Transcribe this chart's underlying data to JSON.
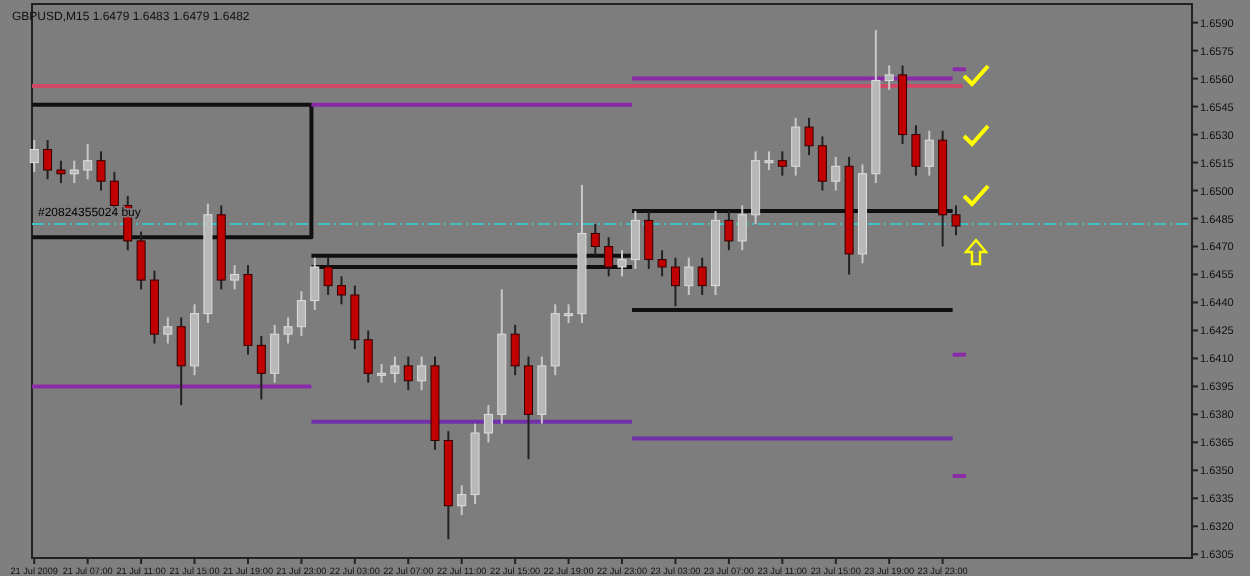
{
  "chart_data": {
    "type": "candlestick",
    "title": "GBPUSD,M15  1.6479 1.6483 1.6479 1.6482",
    "x": [
      "2009-07-21T03:00",
      "2009-07-21T04:00",
      "2009-07-21T05:00",
      "2009-07-21T06:00",
      "2009-07-21T07:00",
      "2009-07-21T08:00",
      "2009-07-21T09:00",
      "2009-07-21T10:00",
      "2009-07-21T11:00",
      "2009-07-21T12:00",
      "2009-07-21T13:00",
      "2009-07-21T14:00",
      "2009-07-21T15:00",
      "2009-07-21T16:00",
      "2009-07-21T17:00",
      "2009-07-21T18:00",
      "2009-07-21T19:00",
      "2009-07-21T20:00",
      "2009-07-21T21:00",
      "2009-07-21T22:00",
      "2009-07-21T23:00",
      "2009-07-22T00:00",
      "2009-07-22T01:00",
      "2009-07-22T02:00",
      "2009-07-22T03:00",
      "2009-07-22T04:00",
      "2009-07-22T05:00",
      "2009-07-22T06:00",
      "2009-07-22T07:00",
      "2009-07-22T08:00",
      "2009-07-22T09:00",
      "2009-07-22T10:00",
      "2009-07-22T11:00",
      "2009-07-22T12:00",
      "2009-07-22T13:00",
      "2009-07-22T14:00",
      "2009-07-22T15:00",
      "2009-07-22T16:00",
      "2009-07-22T17:00",
      "2009-07-22T18:00",
      "2009-07-22T19:00",
      "2009-07-22T20:00",
      "2009-07-22T21:00",
      "2009-07-22T22:00",
      "2009-07-22T23:00",
      "2009-07-23T00:00",
      "2009-07-23T01:00",
      "2009-07-23T02:00",
      "2009-07-23T03:00",
      "2009-07-23T04:00",
      "2009-07-23T05:00",
      "2009-07-23T06:00",
      "2009-07-23T07:00",
      "2009-07-23T08:00",
      "2009-07-23T09:00",
      "2009-07-23T10:00",
      "2009-07-23T11:00",
      "2009-07-23T12:00",
      "2009-07-23T13:00",
      "2009-07-23T14:00",
      "2009-07-23T15:00",
      "2009-07-23T16:00",
      "2009-07-23T17:00",
      "2009-07-23T18:00",
      "2009-07-23T19:00",
      "2009-07-23T20:00",
      "2009-07-23T21:00",
      "2009-07-23T22:00",
      "2009-07-23T23:00",
      "2009-07-24T00:00"
    ],
    "ohlc": [
      [
        1.6515,
        1.6527,
        1.651,
        1.6522
      ],
      [
        1.6522,
        1.6527,
        1.6506,
        1.6511
      ],
      [
        1.6511,
        1.6516,
        1.6504,
        1.6509
      ],
      [
        1.6509,
        1.6516,
        1.6504,
        1.6511
      ],
      [
        1.6511,
        1.6525,
        1.6506,
        1.6516
      ],
      [
        1.6516,
        1.6521,
        1.65,
        1.6505
      ],
      [
        1.6505,
        1.651,
        1.6487,
        1.6492
      ],
      [
        1.6492,
        1.6497,
        1.6468,
        1.6473
      ],
      [
        1.6473,
        1.6478,
        1.6447,
        1.6452
      ],
      [
        1.6452,
        1.6457,
        1.6418,
        1.6423
      ],
      [
        1.6423,
        1.6432,
        1.6418,
        1.6427
      ],
      [
        1.6427,
        1.6432,
        1.6385,
        1.6406
      ],
      [
        1.6406,
        1.6439,
        1.6401,
        1.6434
      ],
      [
        1.6434,
        1.6493,
        1.6429,
        1.6487
      ],
      [
        1.6487,
        1.6492,
        1.6447,
        1.6452
      ],
      [
        1.6452,
        1.646,
        1.6447,
        1.6455
      ],
      [
        1.6455,
        1.646,
        1.6412,
        1.6417
      ],
      [
        1.6417,
        1.6422,
        1.6388,
        1.6402
      ],
      [
        1.6402,
        1.6428,
        1.6397,
        1.6423
      ],
      [
        1.6423,
        1.6432,
        1.6418,
        1.6427
      ],
      [
        1.6427,
        1.6446,
        1.6422,
        1.6441
      ],
      [
        1.6441,
        1.6464,
        1.6436,
        1.6459
      ],
      [
        1.6459,
        1.6464,
        1.6444,
        1.6449
      ],
      [
        1.6449,
        1.6454,
        1.6439,
        1.6444
      ],
      [
        1.6444,
        1.6449,
        1.6415,
        1.642
      ],
      [
        1.642,
        1.6425,
        1.6397,
        1.6402
      ],
      [
        1.6402,
        1.6407,
        1.6397,
        1.6402
      ],
      [
        1.6402,
        1.6411,
        1.6397,
        1.6406
      ],
      [
        1.6406,
        1.6411,
        1.6393,
        1.6398
      ],
      [
        1.6398,
        1.6411,
        1.6393,
        1.6406
      ],
      [
        1.6406,
        1.6411,
        1.6361,
        1.6366
      ],
      [
        1.6366,
        1.6371,
        1.6313,
        1.6331
      ],
      [
        1.6331,
        1.6342,
        1.6326,
        1.6337
      ],
      [
        1.6337,
        1.6375,
        1.6332,
        1.637
      ],
      [
        1.637,
        1.6385,
        1.6365,
        1.638
      ],
      [
        1.638,
        1.6447,
        1.6375,
        1.6423
      ],
      [
        1.6423,
        1.6428,
        1.6401,
        1.6406
      ],
      [
        1.6406,
        1.6411,
        1.6356,
        1.638
      ],
      [
        1.638,
        1.6411,
        1.6375,
        1.6406
      ],
      [
        1.6406,
        1.6439,
        1.6401,
        1.6434
      ],
      [
        1.6434,
        1.6439,
        1.6429,
        1.6434
      ],
      [
        1.6434,
        1.6503,
        1.6429,
        1.6477
      ],
      [
        1.6477,
        1.6482,
        1.6465,
        1.647
      ],
      [
        1.647,
        1.6475,
        1.6454,
        1.6459
      ],
      [
        1.6459,
        1.6468,
        1.6454,
        1.6463
      ],
      [
        1.6463,
        1.6489,
        1.6458,
        1.6484
      ],
      [
        1.6484,
        1.6489,
        1.6458,
        1.6463
      ],
      [
        1.6463,
        1.6468,
        1.6454,
        1.6459
      ],
      [
        1.6459,
        1.6464,
        1.6438,
        1.6449
      ],
      [
        1.6449,
        1.6464,
        1.6444,
        1.6459
      ],
      [
        1.6459,
        1.6464,
        1.6444,
        1.6449
      ],
      [
        1.6449,
        1.6489,
        1.6444,
        1.6484
      ],
      [
        1.6484,
        1.6489,
        1.6468,
        1.6473
      ],
      [
        1.6473,
        1.6492,
        1.6468,
        1.6487
      ],
      [
        1.6487,
        1.6521,
        1.6482,
        1.6516
      ],
      [
        1.6516,
        1.6521,
        1.6511,
        1.6516
      ],
      [
        1.6516,
        1.6521,
        1.6508,
        1.6513
      ],
      [
        1.6513,
        1.6539,
        1.6508,
        1.6534
      ],
      [
        1.6534,
        1.6539,
        1.6519,
        1.6524
      ],
      [
        1.6524,
        1.6529,
        1.65,
        1.6505
      ],
      [
        1.6505,
        1.6518,
        1.65,
        1.6513
      ],
      [
        1.6513,
        1.6518,
        1.6455,
        1.6466
      ],
      [
        1.6466,
        1.6514,
        1.6461,
        1.6509
      ],
      [
        1.6509,
        1.6586,
        1.6504,
        1.6559
      ],
      [
        1.6559,
        1.6567,
        1.6554,
        1.6562
      ],
      [
        1.6562,
        1.6567,
        1.6525,
        1.653
      ],
      [
        1.653,
        1.6535,
        1.6508,
        1.6513
      ],
      [
        1.6513,
        1.6532,
        1.6508,
        1.6527
      ],
      [
        1.6527,
        1.6532,
        1.647,
        1.6487
      ],
      [
        1.6487,
        1.6492,
        1.6476,
        1.6481
      ]
    ],
    "series": [
      {
        "type": "line",
        "color": "#d04868",
        "x": [
          "2009-07-21T02:50",
          "2009-07-24T00:30"
        ],
        "values": [
          1.6556,
          1.6556
        ]
      },
      {
        "type": "line",
        "color": "#101010",
        "x": [
          "2009-07-21T02:50",
          "2009-07-21T23:45",
          "2009-07-21T23:45",
          "2009-07-21T02:50"
        ],
        "values": [
          1.6546,
          1.6546,
          1.6475,
          1.6475
        ]
      },
      {
        "type": "line",
        "color": "#101010",
        "x": [
          "2009-07-21T23:45",
          "2009-07-22T23:45"
        ],
        "values": [
          1.6465,
          1.6465
        ]
      },
      {
        "type": "line",
        "color": "#101010",
        "x": [
          "2009-07-21T23:45",
          "2009-07-22T23:45"
        ],
        "values": [
          1.6459,
          1.6459
        ]
      },
      {
        "type": "line",
        "color": "#101010",
        "x": [
          "2009-07-22T23:45",
          "2009-07-23T23:45"
        ],
        "values": [
          1.6489,
          1.6489
        ]
      },
      {
        "type": "line",
        "color": "#101010",
        "x": [
          "2009-07-22T23:45",
          "2009-07-23T23:45"
        ],
        "values": [
          1.6436,
          1.6436
        ]
      },
      {
        "type": "line",
        "color": "#8a2aa8",
        "x": [
          "2009-07-21T02:50",
          "2009-07-21T23:45"
        ],
        "values": [
          1.6395,
          1.6395
        ]
      },
      {
        "type": "line",
        "color": "#8a2aa8",
        "x": [
          "2009-07-21T23:45",
          "2009-07-22T23:45"
        ],
        "values": [
          1.6546,
          1.6546
        ]
      },
      {
        "type": "line",
        "color": "#7030a8",
        "x": [
          "2009-07-21T23:45",
          "2009-07-22T23:45"
        ],
        "values": [
          1.6376,
          1.6376
        ]
      },
      {
        "type": "line",
        "color": "#8a2aa8",
        "x": [
          "2009-07-22T23:45",
          "2009-07-23T23:45"
        ],
        "values": [
          1.656,
          1.656
        ]
      },
      {
        "type": "line",
        "color": "#7030a8",
        "x": [
          "2009-07-22T23:45",
          "2009-07-23T23:45"
        ],
        "values": [
          1.6367,
          1.6367
        ]
      },
      {
        "type": "line",
        "color": "#8a2aa8",
        "x": [
          "2009-07-23T23:45",
          "2009-07-24T00:45"
        ],
        "values": [
          1.6565,
          1.6565
        ]
      },
      {
        "type": "line",
        "color": "#8a2aa8",
        "x": [
          "2009-07-23T23:45",
          "2009-07-24T00:45"
        ],
        "values": [
          1.6412,
          1.6412
        ]
      },
      {
        "type": "line",
        "color": "#8a2aa8",
        "x": [
          "2009-07-23T23:45",
          "2009-07-24T00:45"
        ],
        "values": [
          1.6347,
          1.6347
        ]
      }
    ],
    "ref_lines": [
      {
        "axis": "y",
        "value": 1.6482,
        "label": "#20824355024 buy",
        "color": "#40c0c0",
        "line_style": "dashed"
      }
    ],
    "xlim": [
      "2009-07-21T02:50",
      "2009-07-24T17:40"
    ],
    "xticks": [
      {
        "value": "2009-07-21T03:00",
        "label": "21 Jul 2009"
      },
      {
        "value": "2009-07-21T07:00",
        "label": "21 Jul 07:00"
      },
      {
        "value": "2009-07-21T11:00",
        "label": "21 Jul 11:00"
      },
      {
        "value": "2009-07-21T15:00",
        "label": "21 Jul 15:00"
      },
      {
        "value": "2009-07-21T19:00",
        "label": "21 Jul 19:00"
      },
      {
        "value": "2009-07-21T23:00",
        "label": "21 Jul 23:00"
      },
      {
        "value": "2009-07-22T03:00",
        "label": "22 Jul 03:00"
      },
      {
        "value": "2009-07-22T07:00",
        "label": "22 Jul 07:00"
      },
      {
        "value": "2009-07-22T11:00",
        "label": "22 Jul 11:00"
      },
      {
        "value": "2009-07-22T15:00",
        "label": "22 Jul 15:00"
      },
      {
        "value": "2009-07-22T19:00",
        "label": "22 Jul 19:00"
      },
      {
        "value": "2009-07-22T23:00",
        "label": "22 Jul 23:00"
      },
      {
        "value": "2009-07-23T03:00",
        "label": "23 Jul 03:00"
      },
      {
        "value": "2009-07-23T07:00",
        "label": "23 Jul 07:00"
      },
      {
        "value": "2009-07-23T11:00",
        "label": "23 Jul 11:00"
      },
      {
        "value": "2009-07-23T15:00",
        "label": "23 Jul 15:00"
      },
      {
        "value": "2009-07-23T19:00",
        "label": "23 Jul 19:00"
      },
      {
        "value": "2009-07-23T23:00",
        "label": "23 Jul 23:00"
      }
    ],
    "ylim": [
      1.6303,
      1.66
    ],
    "yticks": [
      {
        "value": 1.659,
        "label": "1.6590"
      },
      {
        "value": 1.6575,
        "label": "1.6575"
      },
      {
        "value": 1.656,
        "label": "1.6560"
      },
      {
        "value": 1.6545,
        "label": "1.6545"
      },
      {
        "value": 1.653,
        "label": "1.6530"
      },
      {
        "value": 1.6515,
        "label": "1.6515"
      },
      {
        "value": 1.65,
        "label": "1.6500"
      },
      {
        "value": 1.6485,
        "label": "1.6485"
      },
      {
        "value": 1.647,
        "label": "1.6470"
      },
      {
        "value": 1.6455,
        "label": "1.6455"
      },
      {
        "value": 1.644,
        "label": "1.6440"
      },
      {
        "value": 1.6425,
        "label": "1.6425"
      },
      {
        "value": 1.641,
        "label": "1.6410"
      },
      {
        "value": 1.6395,
        "label": "1.6395"
      },
      {
        "value": 1.638,
        "label": "1.6380"
      },
      {
        "value": 1.6365,
        "label": "1.6365"
      },
      {
        "value": 1.635,
        "label": "1.6350"
      },
      {
        "value": 1.6335,
        "label": "1.6335"
      },
      {
        "value": 1.632,
        "label": "1.6320"
      },
      {
        "value": 1.6305,
        "label": "1.6305"
      }
    ]
  }
}
